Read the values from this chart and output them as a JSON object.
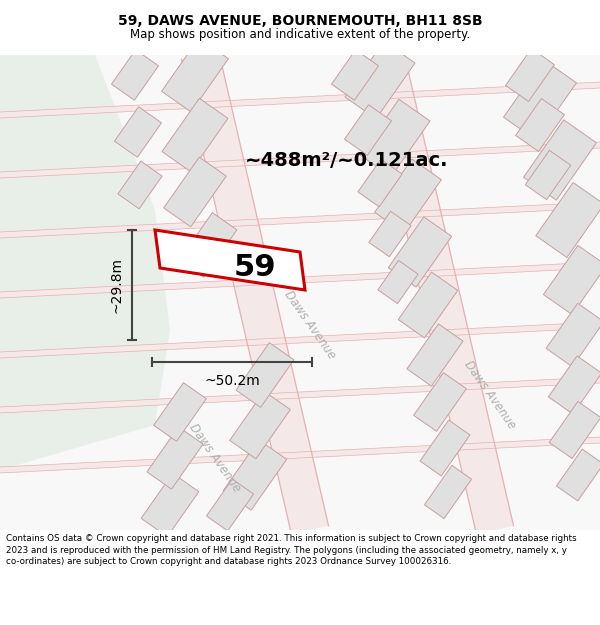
{
  "title": "59, DAWS AVENUE, BOURNEMOUTH, BH11 8SB",
  "subtitle": "Map shows position and indicative extent of the property.",
  "footer": "Contains OS data © Crown copyright and database right 2021. This information is subject to Crown copyright and database rights 2023 and is reproduced with the permission of HM Land Registry. The polygons (including the associated geometry, namely x, y co-ordinates) are subject to Crown copyright and database rights 2023 Ordnance Survey 100026316.",
  "area_label": "~488m²/~0.121ac.",
  "width_label": "~50.2m",
  "height_label": "~29.8m",
  "plot_number": "59",
  "highlight_color": "#cc0000",
  "street_label": "Daws Avenue",
  "bg_map": "#f8f8f8",
  "bg_green": "#e8efe8",
  "road_fill": "#f5e8e8",
  "road_line": "#e8a0a0",
  "block_fill": "#e0e0e0",
  "block_edge": "#c8a0a0",
  "title_fontsize": 10,
  "subtitle_fontsize": 8.5,
  "footer_fontsize": 6.3
}
